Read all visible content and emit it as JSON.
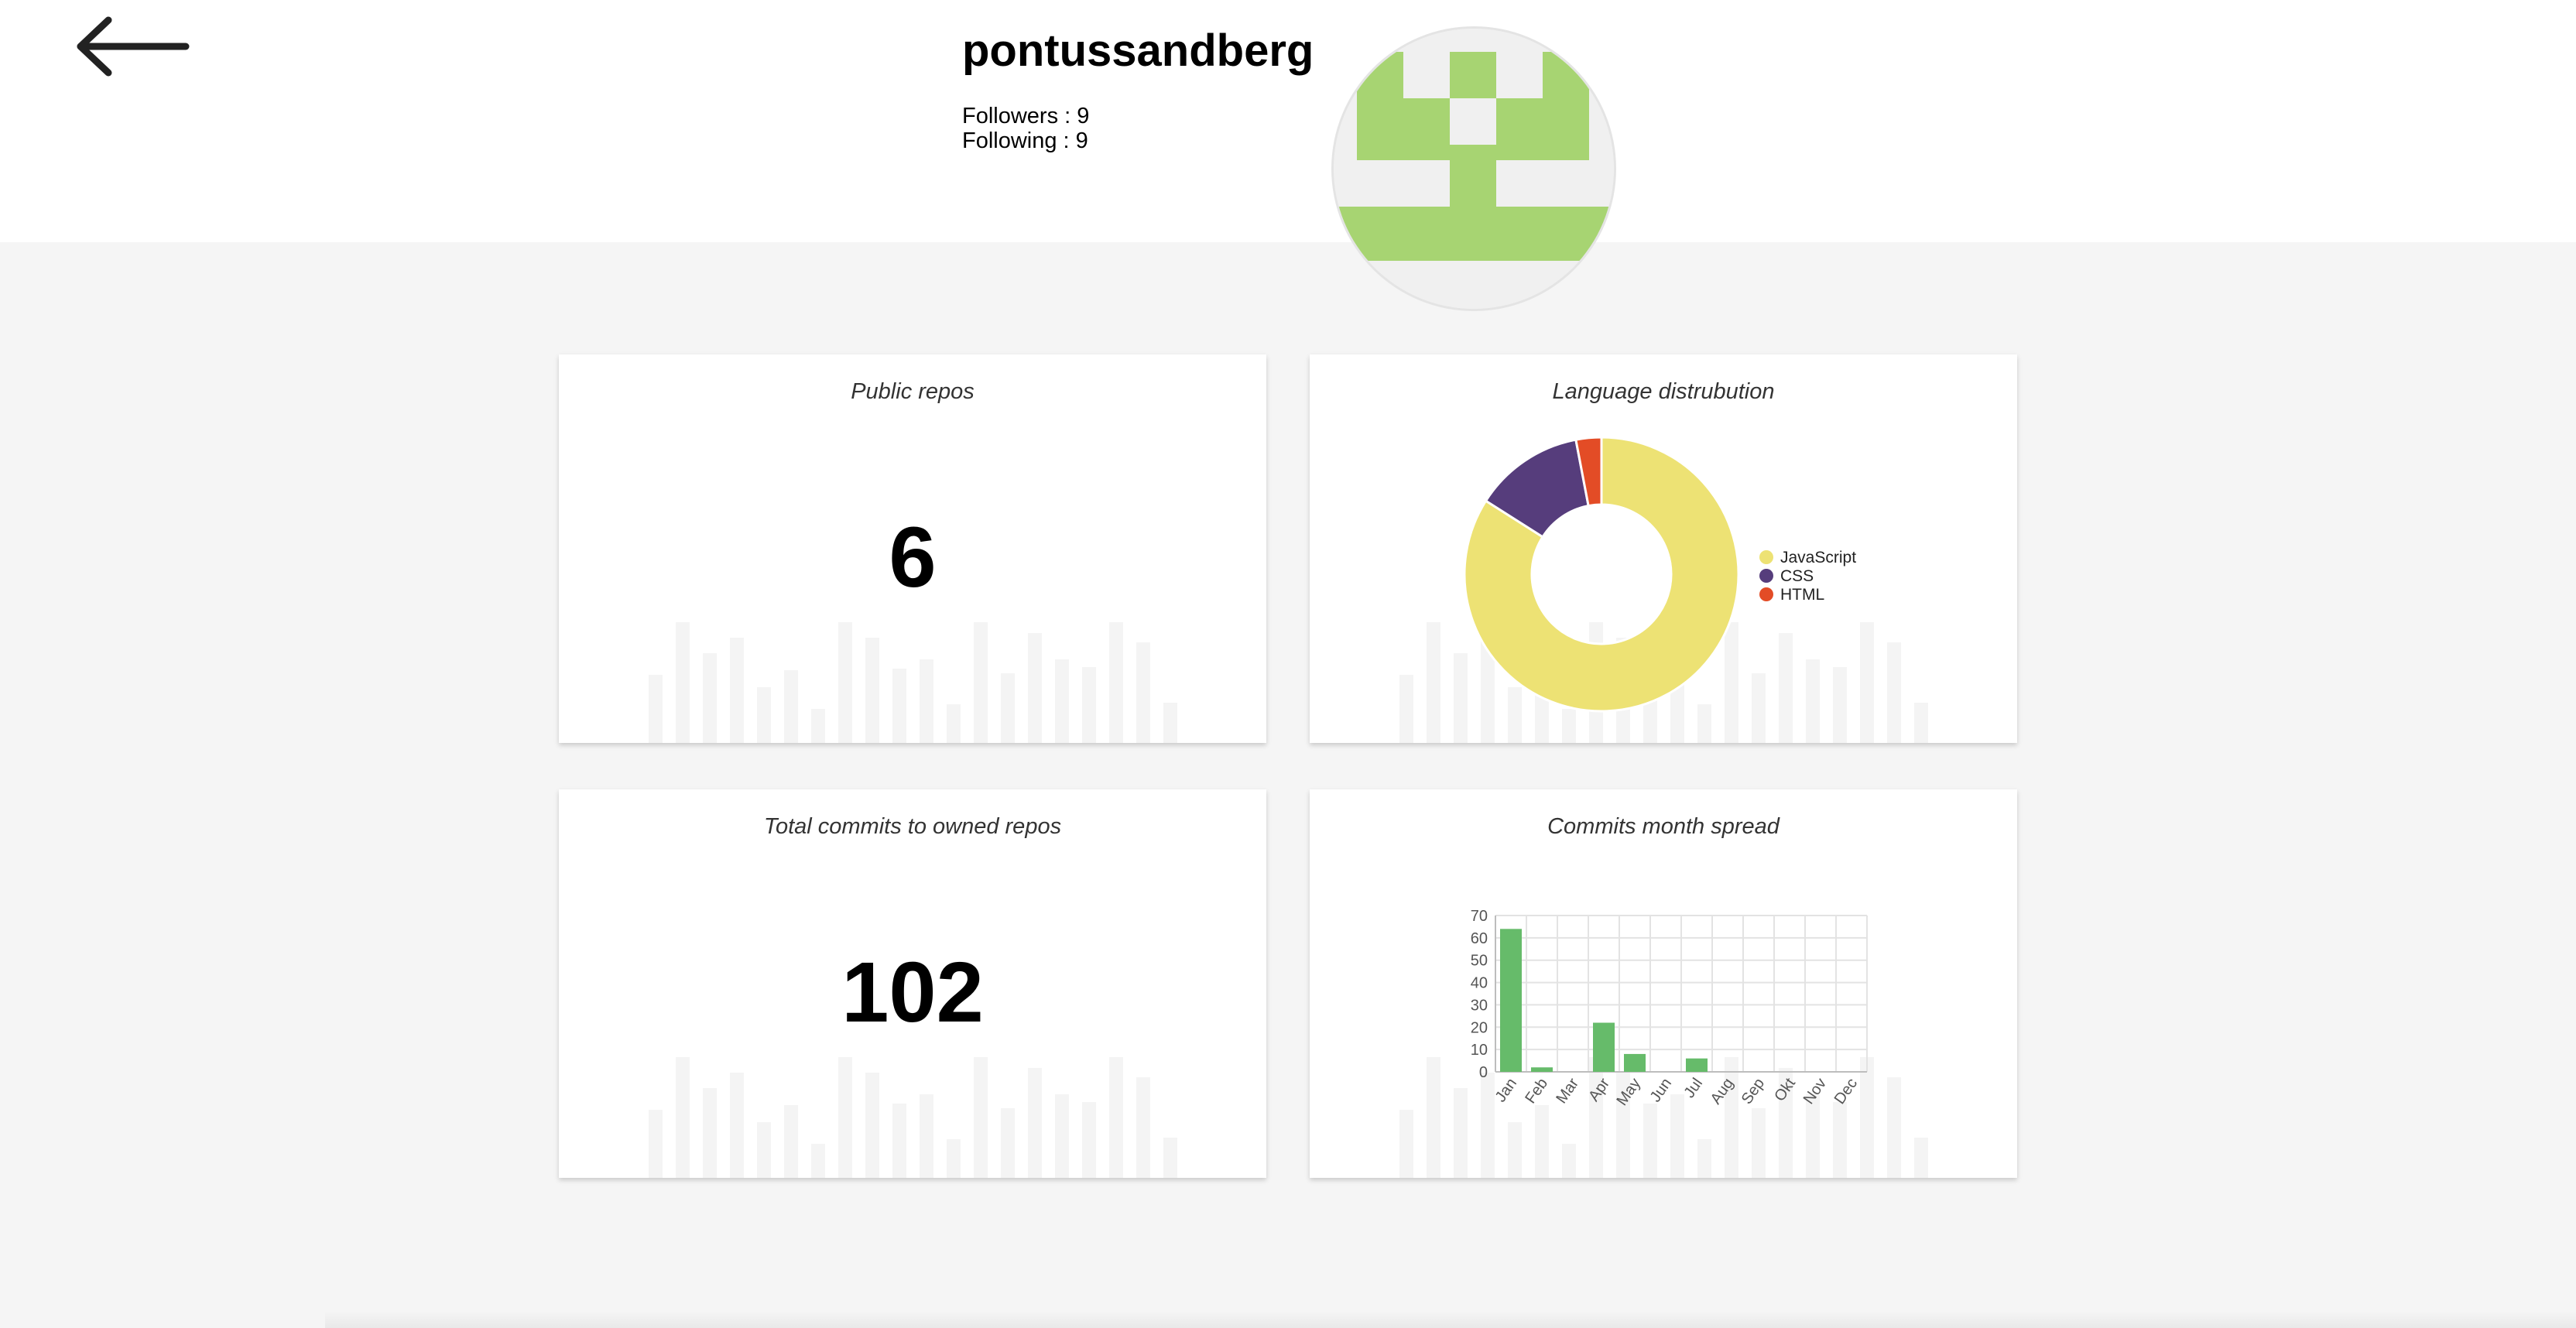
{
  "header": {
    "username": "pontussandberg",
    "followers_text": "Followers : 9",
    "following_text": "Following : 9",
    "back_icon": "arrow-left-icon"
  },
  "cards": {
    "public_repos": {
      "title": "Public repos",
      "value": "6"
    },
    "language": {
      "title": "Language distrubution"
    },
    "total_commits": {
      "title": "Total commits to owned repos",
      "value": "102"
    },
    "commits_spread": {
      "title": "Commits month spread"
    }
  },
  "colors": {
    "javascript": "#ede274",
    "css": "#563d7c",
    "html": "#e34c26",
    "commit_bar": "#66bb6a",
    "avatar_green": "#a7d472",
    "avatar_bg": "#f0f0f0",
    "background_bars": "#f4f4f4"
  },
  "chart_data": [
    {
      "type": "pie",
      "variant": "doughnut",
      "labels": [
        "JavaScript",
        "CSS",
        "HTML"
      ],
      "values": [
        84,
        13,
        3
      ],
      "legend_position": "right"
    },
    {
      "type": "bar",
      "categories": [
        "Jan",
        "Feb",
        "Mar",
        "Apr",
        "May",
        "Jun",
        "Jul",
        "Aug",
        "Sep",
        "Okt",
        "Nov",
        "Dec"
      ],
      "values": [
        64,
        2,
        0,
        22,
        8,
        0,
        6,
        0,
        0,
        0,
        0,
        0
      ],
      "ylim": [
        0,
        70
      ],
      "yticks": [
        0,
        10,
        20,
        30,
        40,
        50,
        60,
        70
      ],
      "grid": true,
      "legend_position": "none"
    }
  ]
}
